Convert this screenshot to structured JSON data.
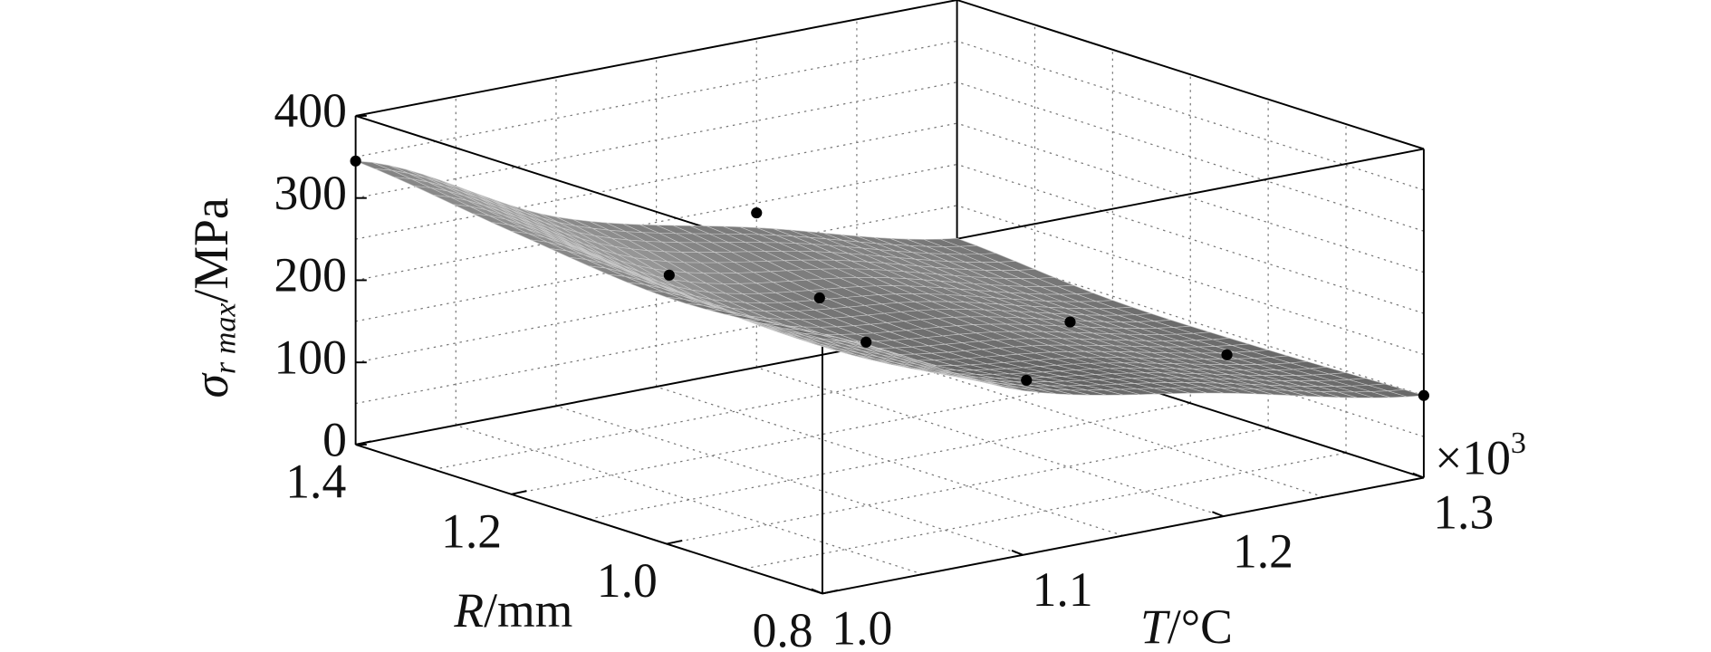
{
  "chart_data": {
    "type": "surface3d",
    "zlabel": {
      "symbol": "σ",
      "subscript": "r max",
      "unit": "/MPa"
    },
    "xlabel": {
      "symbol": "T",
      "unit": "/°C"
    },
    "ylabel": {
      "symbol": "R",
      "unit": "/mm"
    },
    "x_multiplier": {
      "base": "×10",
      "exponent": "3"
    },
    "xlim": [
      1.0,
      1.3
    ],
    "xticks": [
      {
        "value": 1.0,
        "label": "1.0"
      },
      1.1,
      1.2,
      1.3
    ],
    "ylim": [
      0.8,
      1.4
    ],
    "yticks": [
      0.8,
      {
        "value": 1.0,
        "label": "1.0"
      },
      1.2,
      1.4
    ],
    "zlim": [
      0,
      400
    ],
    "zticks": [
      0,
      100,
      200,
      300,
      400
    ],
    "grid": true,
    "surface": {
      "x": [
        1.0,
        1.1,
        1.2,
        1.3
      ],
      "y": [
        0.8,
        1.0,
        1.2,
        1.4
      ],
      "z": [
        [
          310,
          200,
          150,
          100
        ],
        [
          300,
          180,
          140,
          95
        ],
        [
          320,
          190,
          150,
          95
        ],
        [
          345,
          230,
          170,
          110
        ]
      ],
      "color": "#5a5a5a"
    },
    "points": {
      "x": [
        1.0,
        1.2,
        1.04,
        1.115,
        1.08,
        1.16,
        1.24,
        1.26,
        1.3
      ],
      "y": [
        1.4,
        1.4,
        1.1,
        1.1,
        0.95,
        0.95,
        1.1,
        0.95,
        0.8
      ],
      "z": [
        345,
        188,
        278,
        215,
        223,
        139,
        127,
        123,
        100
      ],
      "color": "#000000"
    }
  }
}
